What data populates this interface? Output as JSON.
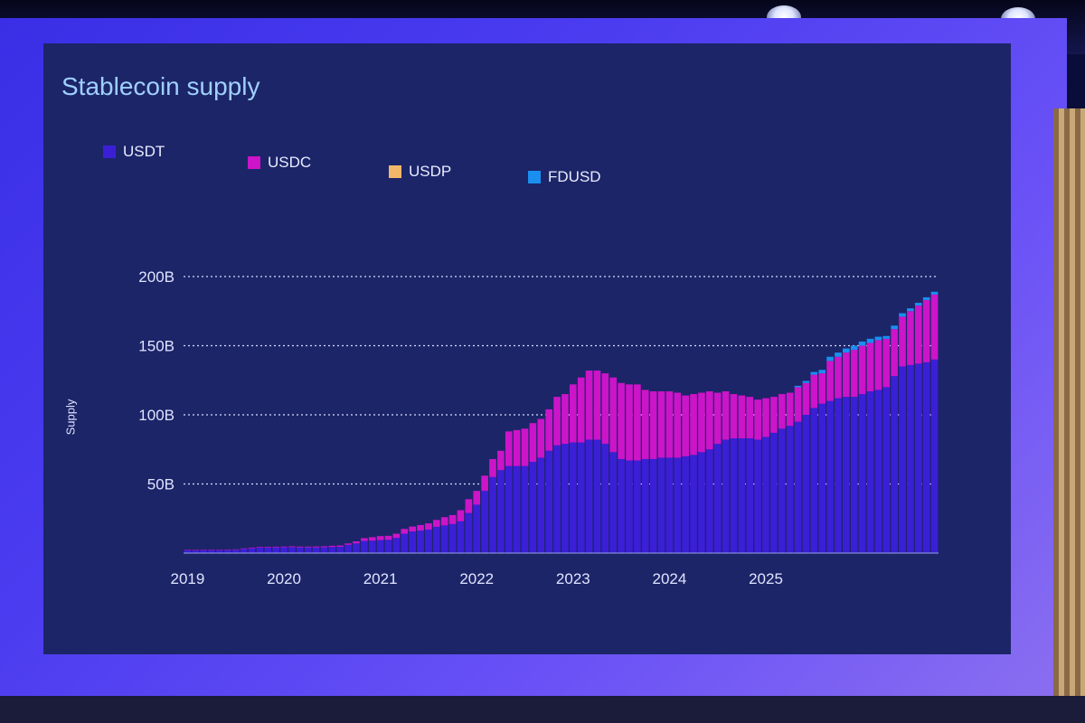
{
  "chart_data": {
    "type": "bar",
    "stacked": true,
    "title": "Stablecoin supply",
    "ylabel": "Supply",
    "xlabel": "",
    "ylim": [
      0,
      200
    ],
    "y_ticks": [
      "50B",
      "100B",
      "150B",
      "200B"
    ],
    "y_tick_values": [
      50,
      100,
      150,
      200
    ],
    "x_ticks": [
      "2019",
      "2020",
      "2021",
      "2022",
      "2023",
      "2024",
      "2025"
    ],
    "grid": "dotted horizontal",
    "legend_position": "top-left",
    "x_start": "2019-01",
    "x_end": "2025-02",
    "series": [
      {
        "name": "USDT",
        "color": "#3a1fd6",
        "values": [
          2.0,
          2.0,
          2.0,
          2.1,
          2.1,
          2.2,
          2.4,
          3.0,
          3.5,
          3.9,
          4.0,
          4.1,
          4.2,
          4.3,
          4.1,
          4.1,
          4.1,
          4.2,
          4.5,
          4.6,
          6.0,
          7.0,
          8.8,
          9.0,
          9.4,
          9.6,
          11.0,
          14.0,
          15.6,
          16.3,
          17.0,
          19.0,
          20.0,
          21.0,
          23.0,
          29.0,
          35.0,
          45.0,
          55.0,
          60.0,
          63.0,
          63.0,
          63.0,
          66.0,
          69.0,
          74.0,
          78.0,
          79.0,
          80.0,
          80.0,
          82.0,
          82.0,
          79.0,
          73.0,
          68.0,
          67.0,
          67.0,
          68.0,
          68.0,
          69.0,
          69.0,
          69.0,
          70.0,
          71.0,
          73.0,
          75.0,
          79.0,
          82.0,
          83.0,
          83.0,
          83.0,
          82.0,
          84.0,
          87.0,
          90.0,
          92.0,
          95.0,
          100.0,
          105.0,
          108.0,
          110.0,
          112.0,
          113.0,
          113.0,
          115.0,
          117.0,
          118.0,
          120.0,
          128.0,
          135.0,
          136.0,
          137.0,
          138.0,
          140.0
        ]
      },
      {
        "name": "USDC",
        "color": "#cc14c8",
        "values": [
          0.3,
          0.3,
          0.3,
          0.3,
          0.3,
          0.3,
          0.3,
          0.4,
          0.5,
          0.5,
          0.5,
          0.5,
          0.5,
          0.6,
          0.6,
          0.6,
          0.7,
          0.7,
          0.8,
          0.9,
          1.0,
          1.5,
          2.0,
          2.5,
          2.9,
          2.9,
          3.0,
          3.5,
          3.6,
          4.0,
          4.5,
          5.0,
          6.0,
          6.5,
          8.0,
          10.0,
          10.0,
          11.0,
          13.0,
          14.0,
          25.0,
          26.0,
          27.0,
          28.0,
          28.0,
          30.0,
          35.0,
          36.0,
          42.0,
          47.0,
          50.0,
          50.0,
          51.0,
          54.0,
          55.0,
          55.0,
          55.0,
          50.0,
          49.0,
          48.0,
          48.0,
          47.0,
          44.0,
          44.0,
          43.0,
          42.0,
          37.0,
          35.0,
          32.0,
          31.0,
          30.0,
          29.0,
          28.0,
          26.0,
          25.0,
          24.0,
          25.0,
          23.0,
          24.0,
          22.0,
          29.0,
          30.0,
          32.0,
          34.0,
          35.0,
          35.0,
          36.0,
          35.0,
          34.0,
          36.0,
          39.0,
          42.0,
          45.0,
          47.0
        ]
      },
      {
        "name": "USDP",
        "color": "#f2b86a",
        "values": [
          0,
          0,
          0,
          0,
          0,
          0,
          0,
          0,
          0,
          0,
          0,
          0,
          0,
          0,
          0,
          0,
          0,
          0,
          0,
          0,
          0,
          0,
          0,
          0,
          0,
          0,
          0,
          0,
          0,
          0,
          0,
          0,
          0,
          0,
          0,
          0,
          0,
          0,
          0,
          0,
          0,
          0,
          0,
          0,
          0,
          0,
          0,
          0,
          0,
          0,
          0,
          0,
          0,
          0,
          0,
          0,
          0,
          0,
          0,
          0,
          0,
          0,
          0,
          0,
          0,
          0,
          0,
          0,
          0,
          0,
          0,
          0,
          0,
          0,
          0,
          0,
          0,
          0,
          0,
          0,
          0,
          0,
          0,
          0,
          0,
          0,
          0,
          0,
          0,
          0,
          0,
          0,
          0,
          0
        ]
      },
      {
        "name": "FDUSD",
        "color": "#1a8ff0",
        "values": [
          0,
          0,
          0,
          0,
          0,
          0,
          0,
          0,
          0,
          0,
          0,
          0,
          0,
          0,
          0,
          0,
          0,
          0,
          0,
          0,
          0,
          0,
          0,
          0,
          0,
          0,
          0,
          0,
          0,
          0,
          0,
          0,
          0,
          0,
          0,
          0,
          0,
          0,
          0,
          0,
          0,
          0,
          0,
          0,
          0,
          0,
          0,
          0,
          0,
          0,
          0,
          0,
          0,
          0,
          0,
          0,
          0,
          0,
          0,
          0,
          0,
          0,
          0,
          0,
          0,
          0,
          0,
          0,
          0,
          0,
          0,
          0,
          0,
          0,
          0,
          0,
          1.0,
          1.5,
          2.0,
          2.5,
          3.0,
          3.0,
          3.0,
          3.0,
          3.0,
          3.0,
          2.5,
          2.0,
          2.5,
          2.5,
          2.0,
          2.0,
          2.0,
          2.0
        ]
      }
    ]
  }
}
